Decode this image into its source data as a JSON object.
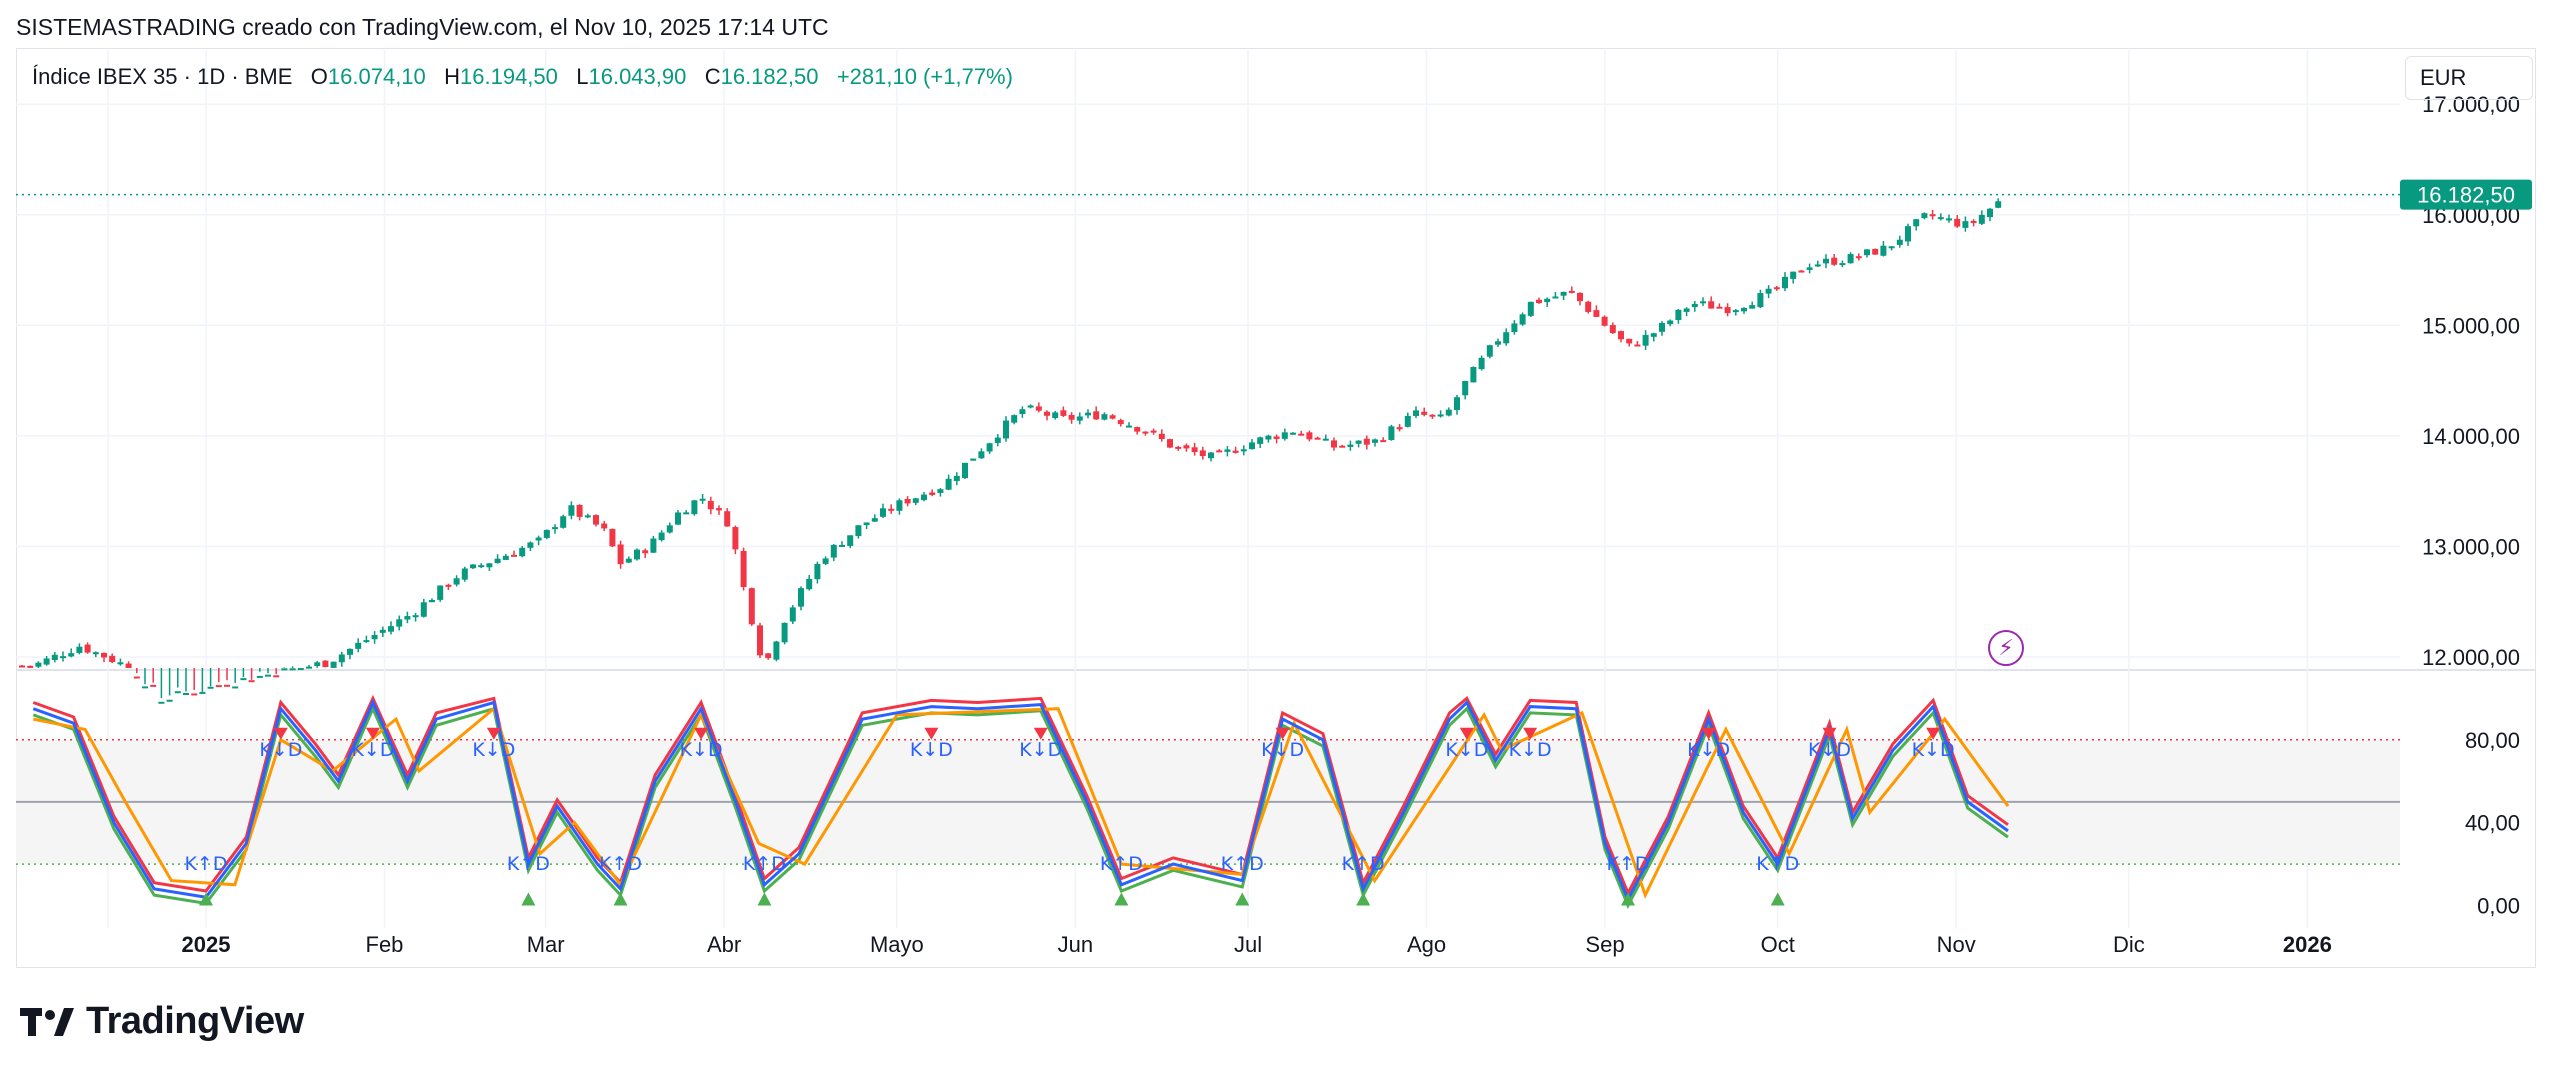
{
  "header": {
    "caption": "SISTEMASTRADING creado con TradingView.com, el Nov 10, 2025 17:14 UTC"
  },
  "legend": {
    "symbol": "Índice IBEX 35 · 1D · BME",
    "open_label": "O",
    "open": "16.074,10",
    "high_label": "H",
    "high": "16.194,50",
    "low_label": "L",
    "low": "16.043,90",
    "close_label": "C",
    "close": "16.182,50",
    "change": "+281,10 (+1,77%)"
  },
  "currency": "EUR",
  "last_price_label": "16.182,50",
  "brand": {
    "name": "TradingView"
  },
  "icons": {
    "flash": "lightning-bolt-icon",
    "logo": "tradingview-logo-icon"
  },
  "colors": {
    "up": "#089981",
    "down": "#f23645",
    "k_line": "#2962ff",
    "d_line": "#ff9800",
    "green_line": "#4caf50",
    "red_line": "#f23645",
    "overbought": "#f23645",
    "oversold": "#4caf50",
    "signal_text": "#2962ff"
  },
  "chart_data": [
    {
      "type": "candlestick",
      "title": "Índice IBEX 35",
      "x_axis": {
        "labels": [
          "2025",
          "Feb",
          "Mar",
          "Abr",
          "Mayo",
          "Jun",
          "Jul",
          "Ago",
          "Sep",
          "Oct",
          "Nov",
          "Dic",
          "2026"
        ]
      },
      "y_axis": {
        "ticks": [
          12000,
          13000,
          14000,
          15000,
          16000,
          17000
        ],
        "tick_labels": [
          "12.000,00",
          "13.000,00",
          "14.000,00",
          "15.000,00",
          "16.000,00",
          "17.000,00"
        ],
        "range": [
          11900,
          17400
        ]
      },
      "last_close": 16182.5,
      "close_path": [
        {
          "x": "2024-12-02",
          "y": 11920
        },
        {
          "x": "2024-12-10",
          "y": 12100
        },
        {
          "x": "2024-12-17",
          "y": 11950
        },
        {
          "x": "2024-12-23",
          "y": 11600
        },
        {
          "x": "2025-01-08",
          "y": 11800
        },
        {
          "x": "2025-01-22",
          "y": 11950
        },
        {
          "x": "2025-02-06",
          "y": 12400
        },
        {
          "x": "2025-02-14",
          "y": 12750
        },
        {
          "x": "2025-02-21",
          "y": 12900
        },
        {
          "x": "2025-02-28",
          "y": 13050
        },
        {
          "x": "2025-03-05",
          "y": 13350
        },
        {
          "x": "2025-03-11",
          "y": 13150
        },
        {
          "x": "2025-03-14",
          "y": 12850
        },
        {
          "x": "2025-03-19",
          "y": 13000
        },
        {
          "x": "2025-03-24",
          "y": 13300
        },
        {
          "x": "2025-03-28",
          "y": 13450
        },
        {
          "x": "2025-04-02",
          "y": 13200
        },
        {
          "x": "2025-04-04",
          "y": 12700
        },
        {
          "x": "2025-04-08",
          "y": 11900
        },
        {
          "x": "2025-04-11",
          "y": 12300
        },
        {
          "x": "2025-04-18",
          "y": 12900
        },
        {
          "x": "2025-04-25",
          "y": 13200
        },
        {
          "x": "2025-05-02",
          "y": 13400
        },
        {
          "x": "2025-05-09",
          "y": 13550
        },
        {
          "x": "2025-05-16",
          "y": 13900
        },
        {
          "x": "2025-05-23",
          "y": 14250
        },
        {
          "x": "2025-05-30",
          "y": 14150
        },
        {
          "x": "2025-06-06",
          "y": 14200
        },
        {
          "x": "2025-06-13",
          "y": 14050
        },
        {
          "x": "2025-06-18",
          "y": 13900
        },
        {
          "x": "2025-06-25",
          "y": 13800
        },
        {
          "x": "2025-07-02",
          "y": 13950
        },
        {
          "x": "2025-07-09",
          "y": 14050
        },
        {
          "x": "2025-07-16",
          "y": 13900
        },
        {
          "x": "2025-07-23",
          "y": 13950
        },
        {
          "x": "2025-07-30",
          "y": 14200
        },
        {
          "x": "2025-08-04",
          "y": 14150
        },
        {
          "x": "2025-08-08",
          "y": 14500
        },
        {
          "x": "2025-08-13",
          "y": 14850
        },
        {
          "x": "2025-08-19",
          "y": 15200
        },
        {
          "x": "2025-08-26",
          "y": 15300
        },
        {
          "x": "2025-08-29",
          "y": 15150
        },
        {
          "x": "2025-09-03",
          "y": 14900
        },
        {
          "x": "2025-09-05",
          "y": 14800
        },
        {
          "x": "2025-09-10",
          "y": 14950
        },
        {
          "x": "2025-09-16",
          "y": 15200
        },
        {
          "x": "2025-09-23",
          "y": 15150
        },
        {
          "x": "2025-09-30",
          "y": 15300
        },
        {
          "x": "2025-10-06",
          "y": 15550
        },
        {
          "x": "2025-10-13",
          "y": 15600
        },
        {
          "x": "2025-10-20",
          "y": 15700
        },
        {
          "x": "2025-10-27",
          "y": 16000
        },
        {
          "x": "2025-11-03",
          "y": 15900
        },
        {
          "x": "2025-11-10",
          "y": 16182.5
        }
      ]
    },
    {
      "type": "line",
      "x_axis": {
        "labels": [
          "2025",
          "Feb",
          "Mar",
          "Abr",
          "Mayo",
          "Jun",
          "Jul",
          "Ago",
          "Sep",
          "Oct",
          "Nov",
          "Dic",
          "2026"
        ]
      },
      "y_axis": {
        "ticks": [
          0,
          40,
          80
        ],
        "tick_labels": [
          "0,00",
          "40,00",
          "80,00"
        ],
        "range": [
          -7,
          105
        ]
      },
      "levels": {
        "overbought": 80,
        "middle": 50,
        "oversold": 20
      },
      "stoch_k": [
        {
          "x": "2024-12-02",
          "y": 95
        },
        {
          "x": "2024-12-09",
          "y": 88
        },
        {
          "x": "2024-12-16",
          "y": 40
        },
        {
          "x": "2024-12-23",
          "y": 8
        },
        {
          "x": "2025-01-01",
          "y": 4
        },
        {
          "x": "2025-01-08",
          "y": 30
        },
        {
          "x": "2025-01-14",
          "y": 95
        },
        {
          "x": "2025-01-20",
          "y": 75
        },
        {
          "x": "2025-01-24",
          "y": 60
        },
        {
          "x": "2025-01-30",
          "y": 98
        },
        {
          "x": "2025-02-05",
          "y": 60
        },
        {
          "x": "2025-02-10",
          "y": 90
        },
        {
          "x": "2025-02-20",
          "y": 98
        },
        {
          "x": "2025-02-26",
          "y": 20
        },
        {
          "x": "2025-03-03",
          "y": 48
        },
        {
          "x": "2025-03-10",
          "y": 20
        },
        {
          "x": "2025-03-14",
          "y": 8
        },
        {
          "x": "2025-03-20",
          "y": 60
        },
        {
          "x": "2025-03-28",
          "y": 95
        },
        {
          "x": "2025-04-03",
          "y": 50
        },
        {
          "x": "2025-04-08",
          "y": 10
        },
        {
          "x": "2025-04-14",
          "y": 25
        },
        {
          "x": "2025-04-25",
          "y": 90
        },
        {
          "x": "2025-05-07",
          "y": 96
        },
        {
          "x": "2025-05-15",
          "y": 95
        },
        {
          "x": "2025-05-26",
          "y": 97
        },
        {
          "x": "2025-06-03",
          "y": 50
        },
        {
          "x": "2025-06-09",
          "y": 10
        },
        {
          "x": "2025-06-18",
          "y": 20
        },
        {
          "x": "2025-06-30",
          "y": 12
        },
        {
          "x": "2025-07-07",
          "y": 90
        },
        {
          "x": "2025-07-14",
          "y": 80
        },
        {
          "x": "2025-07-21",
          "y": 8
        },
        {
          "x": "2025-07-28",
          "y": 45
        },
        {
          "x": "2025-08-05",
          "y": 90
        },
        {
          "x": "2025-08-08",
          "y": 98
        },
        {
          "x": "2025-08-13",
          "y": 70
        },
        {
          "x": "2025-08-19",
          "y": 96
        },
        {
          "x": "2025-08-27",
          "y": 95
        },
        {
          "x": "2025-09-01",
          "y": 30
        },
        {
          "x": "2025-09-05",
          "y": 3
        },
        {
          "x": "2025-09-12",
          "y": 40
        },
        {
          "x": "2025-09-19",
          "y": 90
        },
        {
          "x": "2025-09-25",
          "y": 45
        },
        {
          "x": "2025-10-01",
          "y": 20
        },
        {
          "x": "2025-10-10",
          "y": 85
        },
        {
          "x": "2025-10-14",
          "y": 42
        },
        {
          "x": "2025-10-21",
          "y": 75
        },
        {
          "x": "2025-10-28",
          "y": 96
        },
        {
          "x": "2025-11-03",
          "y": 50
        },
        {
          "x": "2025-11-10",
          "y": 36
        }
      ],
      "stoch_d": [
        {
          "x": "2024-12-02",
          "y": 90
        },
        {
          "x": "2024-12-11",
          "y": 85
        },
        {
          "x": "2024-12-18",
          "y": 50
        },
        {
          "x": "2024-12-26",
          "y": 12
        },
        {
          "x": "2025-01-06",
          "y": 10
        },
        {
          "x": "2025-01-14",
          "y": 80
        },
        {
          "x": "2025-01-23",
          "y": 65
        },
        {
          "x": "2025-02-03",
          "y": 90
        },
        {
          "x": "2025-02-07",
          "y": 65
        },
        {
          "x": "2025-02-20",
          "y": 95
        },
        {
          "x": "2025-02-28",
          "y": 25
        },
        {
          "x": "2025-03-06",
          "y": 40
        },
        {
          "x": "2025-03-14",
          "y": 10
        },
        {
          "x": "2025-03-28",
          "y": 92
        },
        {
          "x": "2025-04-07",
          "y": 30
        },
        {
          "x": "2025-04-15",
          "y": 20
        },
        {
          "x": "2025-05-01",
          "y": 92
        },
        {
          "x": "2025-05-29",
          "y": 95
        },
        {
          "x": "2025-06-09",
          "y": 20
        },
        {
          "x": "2025-06-30",
          "y": 15
        },
        {
          "x": "2025-07-09",
          "y": 88
        },
        {
          "x": "2025-07-23",
          "y": 12
        },
        {
          "x": "2025-08-11",
          "y": 92
        },
        {
          "x": "2025-08-14",
          "y": 75
        },
        {
          "x": "2025-08-28",
          "y": 93
        },
        {
          "x": "2025-09-08",
          "y": 5
        },
        {
          "x": "2025-09-22",
          "y": 85
        },
        {
          "x": "2025-10-03",
          "y": 25
        },
        {
          "x": "2025-10-13",
          "y": 85
        },
        {
          "x": "2025-10-17",
          "y": 45
        },
        {
          "x": "2025-10-30",
          "y": 90
        },
        {
          "x": "2025-11-10",
          "y": 48
        }
      ],
      "signal_labels": [
        "K↓D",
        "K↑D",
        "OB↓",
        "OS↑"
      ]
    }
  ]
}
